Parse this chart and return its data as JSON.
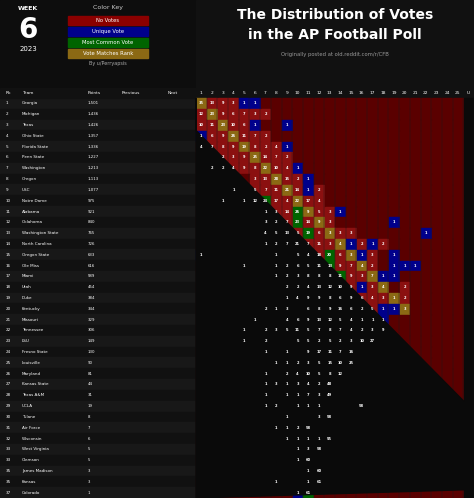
{
  "title_line1": "The Distribution of Votes",
  "title_line2": "in the AP Football Poll",
  "subtitle": "Originally posted at old.reddit.com/r/CFB",
  "week_label": "WEEK",
  "week_num": "6",
  "year": "2023",
  "author": "By u/Perryapsis",
  "col_headers": [
    "1",
    "2",
    "3",
    "4",
    "5",
    "6",
    "7",
    "8",
    "9",
    "10",
    "11",
    "12",
    "13",
    "14",
    "15",
    "16",
    "17",
    "18",
    "19",
    "20",
    "21",
    "22",
    "23",
    "24",
    "25",
    "U"
  ],
  "teams": [
    "Georgia",
    "Michigan",
    "Texas",
    "Ohio State",
    "Florida State",
    "Penn State",
    "Washington",
    "Oregon",
    "USC",
    "Notre Dame",
    "Alabama",
    "Oklahoma",
    "Washington State",
    "North Carolina",
    "Oregon State",
    "Ole Miss",
    "Miami",
    "Utah",
    "Duke",
    "Kentucky",
    "Missouri",
    "Tennessee",
    "LSU",
    "Fresno State",
    "Louisville",
    "Maryland",
    "Kansas State",
    "Texas A&M",
    "UCLA",
    "Tulane",
    "Air Force",
    "Wisconsin",
    "West Virginia",
    "Clemson",
    "James Madison",
    "Kansas",
    "Colorado"
  ],
  "ranks": [
    1,
    2,
    3,
    4,
    5,
    6,
    7,
    8,
    9,
    10,
    11,
    12,
    13,
    14,
    15,
    16,
    17,
    18,
    19,
    20,
    21,
    22,
    23,
    24,
    25,
    26,
    27,
    28,
    29,
    30,
    31,
    32,
    33,
    33,
    35,
    35,
    37
  ],
  "points": [
    "1,501",
    "1,436",
    "1,426",
    "1,357",
    "1,336",
    "1,227",
    "1,213",
    "1,113",
    "1,077",
    "975",
    "921",
    "840",
    "765",
    "726",
    "633",
    "616",
    "589",
    "454",
    "384",
    "344",
    "329",
    "306",
    "149",
    "130",
    "90",
    "81",
    "44",
    "31",
    "19",
    "8",
    "7",
    "6",
    "5",
    "5",
    "3",
    "3",
    "1"
  ],
  "vote_data": [
    [
      35,
      13,
      9,
      3,
      1,
      1,
      0,
      0,
      0,
      0,
      0,
      0,
      0,
      0,
      0,
      0,
      0,
      0,
      0,
      0,
      0,
      0,
      0,
      0,
      0,
      0
    ],
    [
      12,
      23,
      9,
      6,
      7,
      3,
      2,
      0,
      0,
      0,
      0,
      0,
      0,
      0,
      0,
      0,
      0,
      0,
      0,
      0,
      0,
      0,
      0,
      0,
      0,
      0
    ],
    [
      10,
      11,
      23,
      10,
      6,
      1,
      0,
      0,
      1,
      0,
      0,
      0,
      0,
      0,
      0,
      0,
      0,
      0,
      0,
      0,
      0,
      0,
      0,
      0,
      0,
      0
    ],
    [
      1,
      6,
      9,
      26,
      11,
      7,
      2,
      0,
      0,
      0,
      0,
      0,
      0,
      0,
      0,
      0,
      0,
      0,
      0,
      0,
      0,
      0,
      0,
      0,
      0,
      0
    ],
    [
      4,
      7,
      8,
      9,
      19,
      8,
      2,
      4,
      1,
      0,
      0,
      0,
      0,
      0,
      0,
      0,
      0,
      0,
      0,
      0,
      0,
      0,
      0,
      0,
      0,
      0
    ],
    [
      0,
      0,
      2,
      3,
      9,
      25,
      14,
      7,
      2,
      0,
      0,
      0,
      0,
      0,
      0,
      0,
      0,
      0,
      0,
      0,
      0,
      0,
      0,
      0,
      0,
      0
    ],
    [
      0,
      2,
      2,
      4,
      9,
      8,
      22,
      10,
      4,
      1,
      0,
      0,
      0,
      0,
      0,
      0,
      0,
      0,
      0,
      0,
      0,
      0,
      0,
      0,
      0,
      0
    ],
    [
      0,
      0,
      0,
      0,
      0,
      3,
      13,
      28,
      15,
      2,
      1,
      0,
      0,
      0,
      0,
      0,
      0,
      0,
      0,
      0,
      0,
      0,
      0,
      0,
      0,
      0
    ],
    [
      0,
      0,
      0,
      1,
      0,
      5,
      7,
      11,
      21,
      14,
      1,
      2,
      0,
      0,
      0,
      0,
      0,
      0,
      0,
      0,
      0,
      0,
      0,
      0,
      0,
      0
    ],
    [
      0,
      0,
      1,
      0,
      1,
      12,
      24,
      17,
      4,
      22,
      17,
      4,
      0,
      0,
      0,
      0,
      0,
      0,
      0,
      0,
      0,
      0,
      0,
      0,
      0,
      0
    ],
    [
      0,
      0,
      0,
      0,
      0,
      0,
      1,
      3,
      14,
      26,
      9,
      5,
      3,
      1,
      0,
      0,
      0,
      0,
      0,
      0,
      0,
      0,
      0,
      0,
      0,
      0
    ],
    [
      0,
      0,
      0,
      0,
      0,
      0,
      3,
      2,
      7,
      23,
      14,
      9,
      3,
      0,
      0,
      0,
      0,
      0,
      1,
      0,
      0,
      0,
      0,
      0,
      0,
      0
    ],
    [
      0,
      0,
      0,
      0,
      0,
      0,
      4,
      5,
      13,
      5,
      19,
      6,
      3,
      3,
      3,
      0,
      0,
      0,
      0,
      0,
      0,
      1,
      0,
      0,
      0,
      0
    ],
    [
      0,
      0,
      0,
      0,
      0,
      0,
      1,
      2,
      7,
      21,
      7,
      11,
      3,
      4,
      1,
      2,
      1,
      2,
      0,
      0,
      0,
      0,
      0,
      0,
      0,
      0
    ],
    [
      1,
      0,
      0,
      0,
      0,
      0,
      0,
      1,
      0,
      5,
      4,
      18,
      20,
      6,
      3,
      1,
      3,
      0,
      1,
      0,
      0,
      0,
      0,
      0,
      0,
      0
    ],
    [
      0,
      0,
      0,
      0,
      1,
      0,
      0,
      1,
      2,
      6,
      5,
      11,
      13,
      9,
      7,
      4,
      2,
      0,
      1,
      1,
      1,
      0,
      0,
      0,
      0,
      0
    ],
    [
      0,
      0,
      0,
      0,
      0,
      0,
      0,
      1,
      2,
      3,
      8,
      8,
      8,
      11,
      9,
      3,
      7,
      1,
      1,
      0,
      0,
      0,
      0,
      0,
      0,
      0
    ],
    [
      0,
      0,
      0,
      0,
      0,
      0,
      0,
      0,
      2,
      2,
      4,
      13,
      12,
      10,
      9,
      1,
      3,
      4,
      0,
      2,
      0,
      0,
      0,
      0,
      0,
      0
    ],
    [
      0,
      0,
      0,
      0,
      0,
      0,
      0,
      0,
      1,
      4,
      9,
      9,
      8,
      6,
      9,
      6,
      4,
      3,
      1,
      2,
      0,
      0,
      0,
      0,
      0,
      0
    ],
    [
      0,
      0,
      0,
      0,
      0,
      0,
      2,
      1,
      3,
      0,
      6,
      8,
      9,
      16,
      6,
      2,
      5,
      1,
      1,
      3,
      0,
      0,
      0,
      0,
      0,
      0
    ],
    [
      0,
      0,
      0,
      0,
      0,
      1,
      0,
      0,
      4,
      6,
      9,
      13,
      12,
      5,
      4,
      1,
      1,
      1,
      0,
      0,
      0,
      0,
      0,
      0,
      0,
      0
    ],
    [
      0,
      0,
      0,
      0,
      1,
      0,
      2,
      3,
      5,
      11,
      5,
      7,
      8,
      7,
      4,
      2,
      3,
      9,
      0,
      0,
      0,
      0,
      0,
      0,
      0,
      0
    ],
    [
      0,
      0,
      0,
      0,
      1,
      0,
      2,
      0,
      0,
      5,
      5,
      2,
      5,
      2,
      3,
      10,
      27,
      0,
      0,
      0,
      0,
      0,
      0,
      0,
      0,
      0
    ],
    [
      0,
      0,
      0,
      0,
      0,
      0,
      1,
      0,
      1,
      0,
      9,
      17,
      11,
      7,
      16,
      0,
      0,
      0,
      0,
      0,
      0,
      0,
      0,
      0,
      0,
      0
    ],
    [
      0,
      0,
      0,
      0,
      0,
      0,
      0,
      1,
      1,
      2,
      3,
      5,
      15,
      10,
      25,
      0,
      0,
      0,
      0,
      0,
      0,
      0,
      0,
      0,
      0,
      0
    ],
    [
      0,
      0,
      0,
      0,
      0,
      0,
      1,
      0,
      2,
      4,
      10,
      5,
      8,
      12,
      0,
      0,
      0,
      0,
      0,
      0,
      0,
      0,
      0,
      0,
      0,
      0
    ],
    [
      0,
      0,
      0,
      0,
      0,
      0,
      1,
      3,
      1,
      3,
      4,
      2,
      48,
      0,
      0,
      0,
      0,
      0,
      0,
      0,
      0,
      0,
      0,
      0,
      0,
      0
    ],
    [
      0,
      0,
      0,
      0,
      0,
      0,
      1,
      0,
      1,
      1,
      7,
      3,
      49,
      0,
      0,
      0,
      0,
      0,
      0,
      0,
      0,
      0,
      0,
      0,
      0,
      0
    ],
    [
      0,
      0,
      0,
      0,
      0,
      0,
      1,
      2,
      0,
      1,
      1,
      1,
      0,
      0,
      0,
      58,
      0,
      0,
      0,
      0,
      0,
      0,
      0,
      0,
      0,
      0
    ],
    [
      0,
      0,
      0,
      0,
      0,
      0,
      0,
      0,
      1,
      0,
      0,
      3,
      58,
      0,
      0,
      0,
      0,
      0,
      0,
      0,
      0,
      0,
      0,
      0,
      0,
      0
    ],
    [
      0,
      0,
      0,
      0,
      0,
      0,
      0,
      1,
      1,
      2,
      58,
      0,
      0,
      0,
      0,
      0,
      0,
      0,
      0,
      0,
      0,
      0,
      0,
      0,
      0,
      0
    ],
    [
      0,
      0,
      0,
      0,
      0,
      0,
      0,
      0,
      1,
      1,
      1,
      1,
      55,
      0,
      0,
      0,
      0,
      0,
      0,
      0,
      0,
      0,
      0,
      0,
      0,
      0
    ],
    [
      0,
      0,
      0,
      0,
      0,
      0,
      0,
      0,
      0,
      1,
      3,
      58,
      0,
      0,
      0,
      0,
      0,
      0,
      0,
      0,
      0,
      0,
      0,
      0,
      0,
      0
    ],
    [
      0,
      0,
      0,
      0,
      0,
      0,
      0,
      0,
      0,
      1,
      60,
      0,
      0,
      0,
      0,
      0,
      0,
      0,
      0,
      0,
      0,
      0,
      0,
      0,
      0,
      0
    ],
    [
      0,
      0,
      0,
      0,
      0,
      0,
      0,
      0,
      0,
      0,
      1,
      60,
      0,
      0,
      0,
      0,
      0,
      0,
      0,
      0,
      0,
      0,
      0,
      0,
      0,
      0
    ],
    [
      0,
      0,
      0,
      0,
      0,
      0,
      0,
      1,
      0,
      0,
      1,
      61,
      0,
      0,
      0,
      0,
      0,
      0,
      0,
      0,
      0,
      0,
      0,
      0,
      0,
      0
    ],
    [
      0,
      0,
      0,
      0,
      0,
      0,
      0,
      0,
      0,
      1,
      61,
      0,
      0,
      0,
      0,
      0,
      0,
      0,
      0,
      0,
      0,
      0,
      0,
      0,
      0,
      0
    ]
  ],
  "C_BG": "#0a0a0a",
  "C_NO_VOTE": "#5a0000",
  "C_VOTE": "#8b1010",
  "C_UNIQUE": "#00008b",
  "C_MOST": "#006400",
  "C_RANK": "#8b6914",
  "C_UNRANKED_ZERO": "#3a0000",
  "C_UNRANKED_VAL": "#2a2a2a",
  "key_no_votes": "#8b0000",
  "key_unique": "#00008b",
  "key_most": "#006400",
  "key_rank": "#8b6914"
}
